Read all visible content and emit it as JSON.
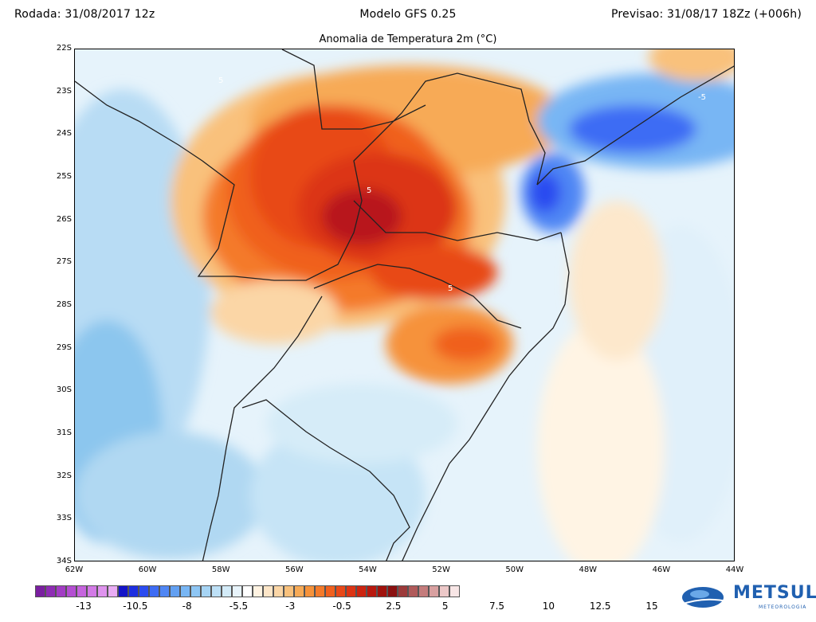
{
  "header": {
    "left": "Rodada: 31/08/2017 12z",
    "center": "Modelo GFS 0.25",
    "right": "Previsao: 31/08/17 18Zz (+006h)"
  },
  "map_title": "Anomalia de Temperatura 2m (°C)",
  "lat_labels": [
    "22S",
    "23S",
    "24S",
    "25S",
    "26S",
    "27S",
    "28S",
    "29S",
    "30S",
    "31S",
    "32S",
    "33S",
    "34S"
  ],
  "lon_labels": [
    "62W",
    "60W",
    "58W",
    "56W",
    "54W",
    "52W",
    "50W",
    "48W",
    "46W",
    "44W"
  ],
  "contour_labels": [
    "5",
    "5",
    "5",
    "-5"
  ],
  "colorbar": {
    "colors": [
      "#7a1fa0",
      "#8e2cb4",
      "#a23cc4",
      "#b44ed2",
      "#c664de",
      "#d37ae6",
      "#df93ee",
      "#e9acf4",
      "#1414c8",
      "#1e2fe0",
      "#2c4cf0",
      "#3e6cf4",
      "#4f86f4",
      "#62a0f2",
      "#78b6f4",
      "#8ec6f4",
      "#a6d4f4",
      "#bde0f6",
      "#d3ebf8",
      "#e8f4fb",
      "#ffffff",
      "#fff3e2",
      "#fde6c8",
      "#fbd6a6",
      "#f9c17c",
      "#f7aa56",
      "#f6923a",
      "#f47a2a",
      "#f0601e",
      "#e84818",
      "#dc3414",
      "#cc2410",
      "#b8180e",
      "#a0120c",
      "#8a1010",
      "#9c3a3a",
      "#b05a5a",
      "#c47c7c",
      "#d8a0a0",
      "#ecc8c8",
      "#f8e6e6"
    ],
    "ticks": [
      "-13",
      "-10.5",
      "-8",
      "-5.5",
      "-3",
      "-0.5",
      "2.5",
      "5",
      "7.5",
      "10",
      "12.5",
      "15"
    ]
  },
  "logo": {
    "name": "METSUL",
    "sub": "METEOROLOGIA"
  }
}
